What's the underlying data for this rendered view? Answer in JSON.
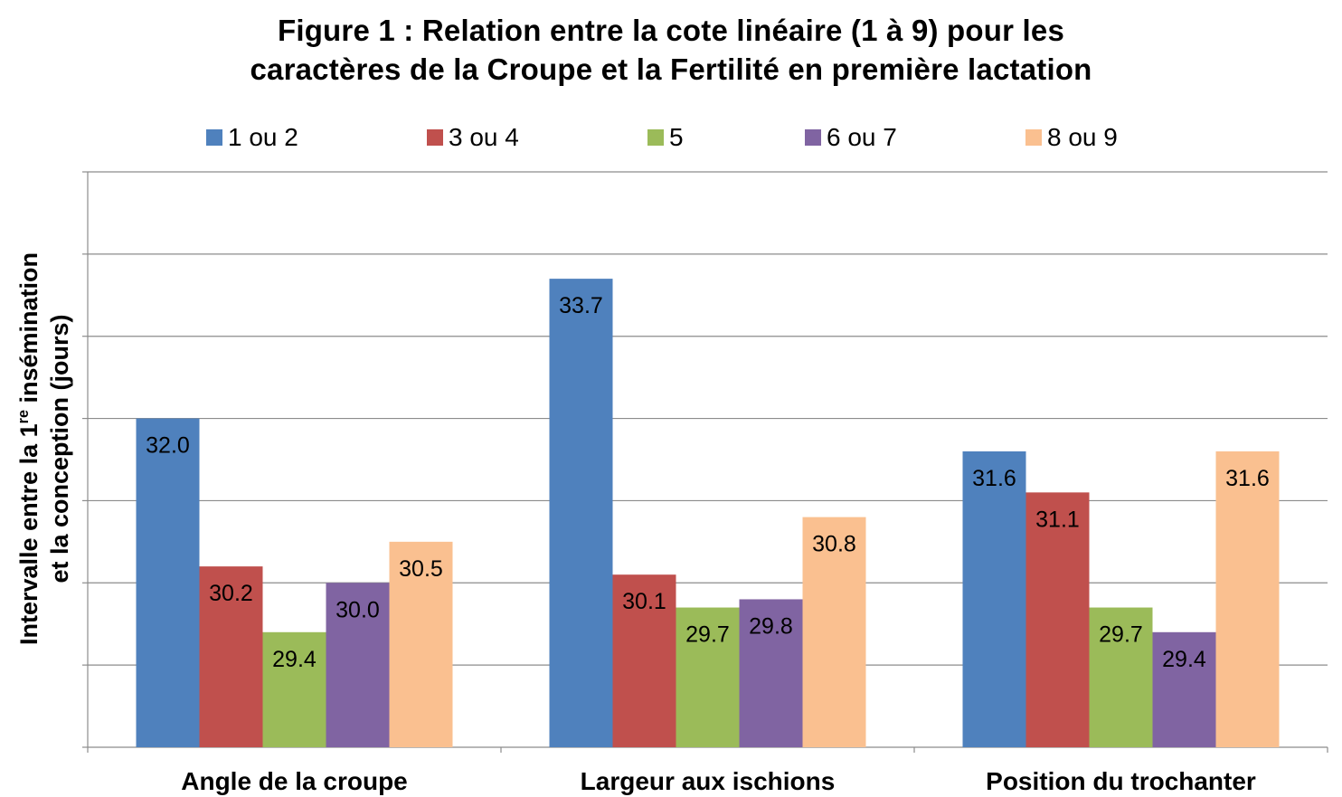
{
  "chart_data": {
    "type": "bar",
    "title_line1": "Figure 1 : Relation entre la cote linéaire (1 à 9) pour les",
    "title_line2": "caractères de la Croupe et la Fertilité en première lactation",
    "ylabel_line1_pre": "Intervalle entre la 1",
    "ylabel_line1_sup": "re",
    "ylabel_line1_post": " insémination",
    "ylabel_line2": "et la conception (jours)",
    "xlabel": "",
    "ylim": [
      28,
      35
    ],
    "grid": true,
    "legend_position": "top",
    "categories": [
      "Angle de la croupe",
      "Largeur aux ischions",
      "Position du trochanter"
    ],
    "series": [
      {
        "name": "1 ou 2",
        "color": "#4F81BD",
        "values": [
          32.0,
          33.7,
          31.6
        ]
      },
      {
        "name": "3 ou 4",
        "color": "#C0504D",
        "values": [
          30.2,
          30.1,
          31.1
        ]
      },
      {
        "name": "5",
        "color": "#9BBB59",
        "values": [
          29.4,
          29.7,
          29.7
        ]
      },
      {
        "name": "6 ou 7",
        "color": "#8064A2",
        "values": [
          30.0,
          29.8,
          29.4
        ]
      },
      {
        "name": "8 ou 9",
        "color": "#FAC090",
        "values": [
          30.5,
          30.8,
          31.6
        ]
      }
    ]
  }
}
